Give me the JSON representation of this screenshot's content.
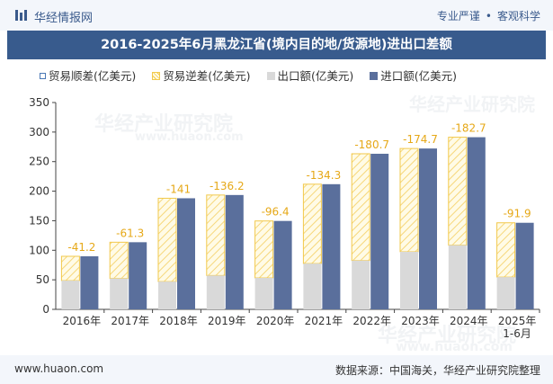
{
  "header": {
    "brand": "华经情报网",
    "tags": [
      "专业严谨",
      "客观科学"
    ]
  },
  "title": "2016-2025年6月黑龙江省(境内目的地/货源地)进出口差额",
  "legend": {
    "shun": "贸易顺差(亿美元)",
    "ni": "贸易逆差(亿美元)",
    "export": "出口额(亿美元)",
    "import": "进口额(亿美元)"
  },
  "footer": {
    "url": "www.huaon.com",
    "source": "数据来源：中国海关，华经产业研究院整理"
  },
  "watermark": {
    "cn": "华经产业研究院",
    "en": "www.huaon.com"
  },
  "colors": {
    "export": "#d9d9d9",
    "import": "#5a6f9c",
    "deficit_border": "#f2c94c",
    "surplus_border": "#4a78b5",
    "label": "#e6a817"
  },
  "chart_data": {
    "type": "bar",
    "categories": [
      "2016年",
      "2017年",
      "2018年",
      "2019年",
      "2020年",
      "2021年",
      "2022年",
      "2023年",
      "2024年",
      "2025年\n1-6月"
    ],
    "ylim": [
      0,
      350
    ],
    "yticks": [
      0,
      50,
      100,
      150,
      200,
      250,
      300,
      350
    ],
    "series": [
      {
        "name": "出口额(亿美元)",
        "values": [
          48.6,
          52.3,
          47.0,
          57.3,
          53.2,
          77.5,
          82.6,
          97.5,
          108.6,
          54.6
        ]
      },
      {
        "name": "进口额(亿美元)",
        "values": [
          89.8,
          113.6,
          188.0,
          193.5,
          149.6,
          211.8,
          263.3,
          272.2,
          291.3,
          146.5
        ]
      },
      {
        "name": "贸易逆差(亿美元)",
        "values": [
          -41.2,
          -61.3,
          -141,
          -136.2,
          -96.4,
          -134.3,
          -180.7,
          -174.7,
          -182.7,
          -91.9
        ]
      }
    ],
    "deficit_labels": [
      "-41.2",
      "-61.3",
      "-141",
      "-136.2",
      "-96.4",
      "-134.3",
      "-180.7",
      "-174.7",
      "-182.7",
      "-91.9"
    ],
    "grid": false,
    "legend_position": "top"
  }
}
